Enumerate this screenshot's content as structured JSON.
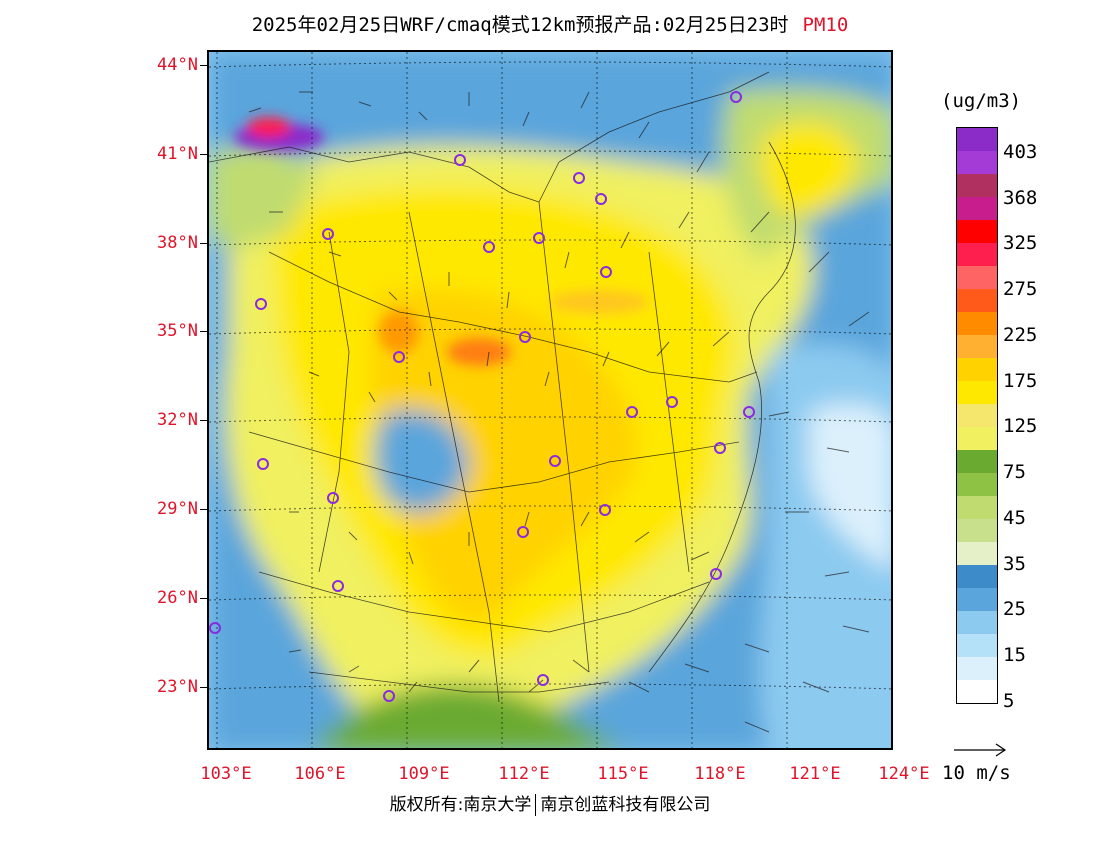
{
  "header": {
    "title": "2025年02月25日WRF/cmaq模式12km预报产品:02月25日23时",
    "pollutant": "PM10"
  },
  "map": {
    "lat_labels": [
      "44°N",
      "41°N",
      "38°N",
      "35°N",
      "32°N",
      "29°N",
      "26°N",
      "23°N"
    ],
    "lon_labels": [
      "103°E",
      "106°E",
      "109°E",
      "112°E",
      "115°E",
      "118°E",
      "121°E",
      "124°E"
    ],
    "station_marker_color": "#8a2be2"
  },
  "legend": {
    "unit": "(ug/m3)",
    "labels": [
      "403",
      "368",
      "325",
      "275",
      "225",
      "175",
      "125",
      "75",
      "45",
      "35",
      "25",
      "15",
      "5"
    ],
    "colors": [
      "#8b2cc9",
      "#a43bd6",
      "#b03060",
      "#c81d8c",
      "#ff0000",
      "#ff1f4f",
      "#ff6464",
      "#ff5a1a",
      "#ff8c00",
      "#ffb030",
      "#ffd200",
      "#ffe800",
      "#f5e66e",
      "#f0f060",
      "#6aaa30",
      "#8ec244",
      "#c0dc70",
      "#c8e08c",
      "#e6f0c8",
      "#3d8bc8",
      "#5aa5dc",
      "#8ccaf0",
      "#b4e0f8",
      "#dcf0fc",
      "#ffffff"
    ]
  },
  "wind": {
    "reference_label": "10 m/s"
  },
  "footer": {
    "copyright_left": "版权所有:南京大学",
    "copyright_right": "南京创蓝科技有限公司"
  }
}
